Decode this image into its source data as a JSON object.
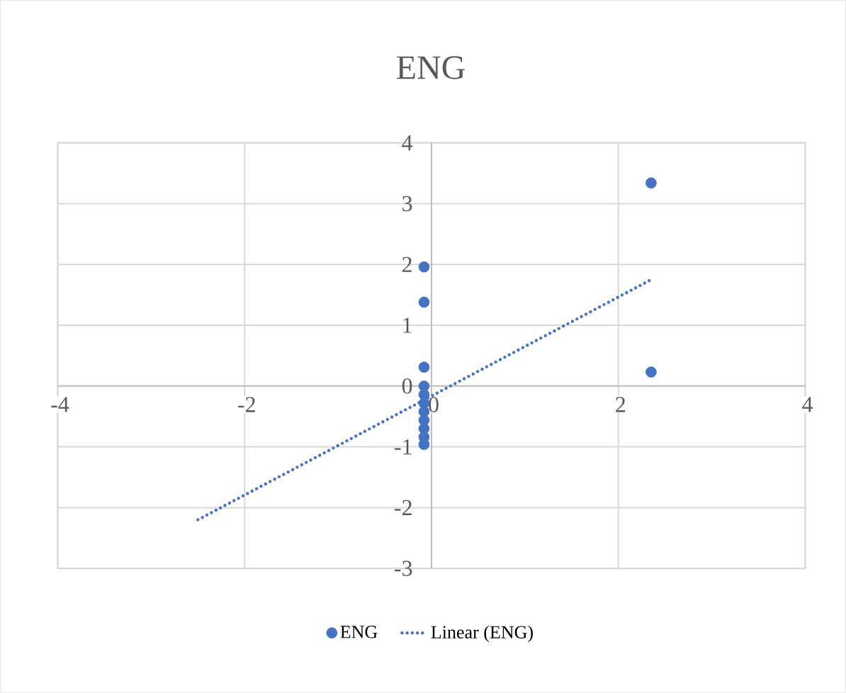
{
  "chart_data": {
    "type": "scatter",
    "title": "ENG",
    "series": [
      {
        "name": "ENG",
        "type": "scatter",
        "color": "#4472c4",
        "x": [
          2.35,
          2.35,
          -0.08,
          -0.08,
          -0.08,
          -0.08,
          -0.08,
          -0.08,
          -0.08,
          -0.08,
          -0.08,
          -0.08,
          -0.08
        ],
        "values": [
          3.34,
          0.23,
          1.96,
          1.38,
          0.31,
          0,
          -0.14,
          -0.28,
          -0.42,
          -0.56,
          -0.7,
          -0.84,
          -0.96
        ]
      },
      {
        "name": "Linear (ENG)",
        "type": "line",
        "color": "#4472c4",
        "line_style": "dotted",
        "x": [
          -2.5,
          2.35
        ],
        "values": [
          -2.2,
          1.75
        ]
      }
    ],
    "xlim": [
      -4,
      4
    ],
    "xticks": [
      -4,
      -2,
      0,
      2,
      4
    ],
    "ylim": [
      -3,
      4
    ],
    "yticks": [
      -3,
      -2,
      -1,
      0,
      1,
      2,
      3,
      4
    ],
    "grid": true,
    "legend": "bottom"
  }
}
